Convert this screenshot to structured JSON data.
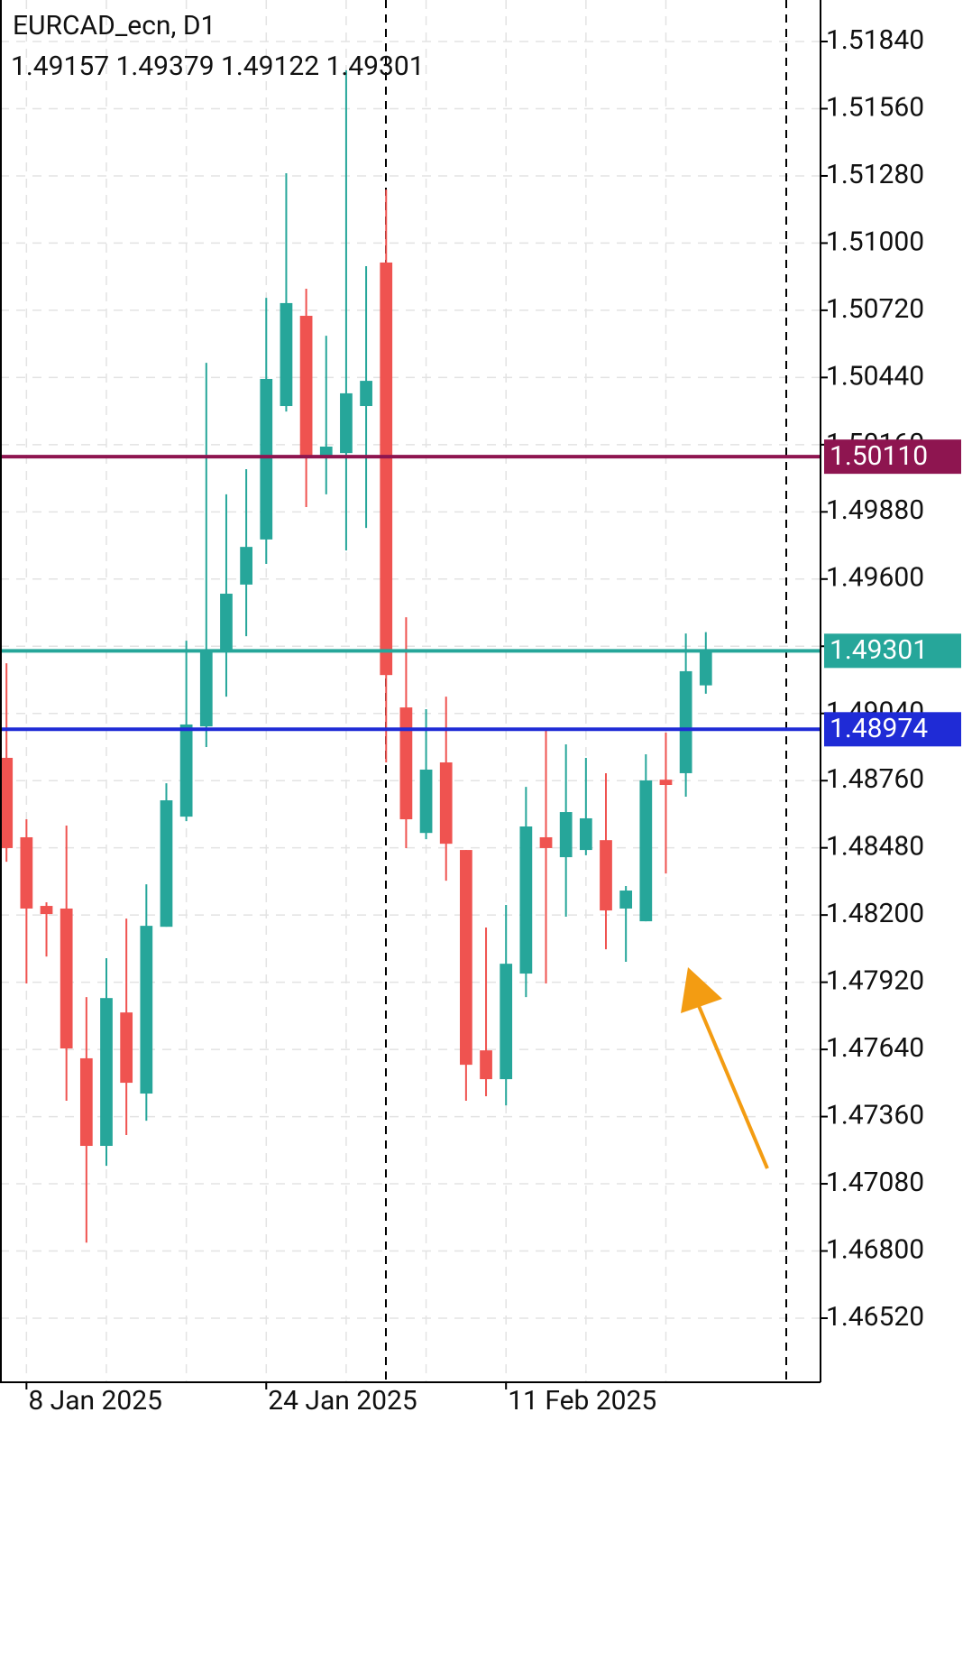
{
  "chart_data": {
    "type": "candlestick",
    "title": "EURCAD_ecn, D1",
    "subtitle": "1.49157 1.49379 1.49122 1.49301",
    "up_color": "#26a69a",
    "down_color": "#ef5350",
    "categories": [
      null,
      "8 Jan 2025",
      null,
      null,
      null,
      null,
      null,
      null,
      null,
      null,
      null,
      null,
      null,
      "24 Jan 2025",
      null,
      null,
      null,
      null,
      null,
      null,
      null,
      null,
      null,
      null,
      null,
      "11 Feb 2025",
      null,
      null,
      null,
      null,
      null,
      null,
      null,
      null,
      null,
      null
    ],
    "open": [
      1.48855,
      1.48524,
      1.48238,
      1.48227,
      1.47603,
      1.47238,
      1.47794,
      1.47456,
      1.48151,
      1.4861,
      1.48986,
      1.49298,
      1.49577,
      1.49765,
      1.50321,
      1.50697,
      1.50114,
      1.50125,
      1.50321,
      1.50919,
      1.49065,
      1.48542,
      1.48836,
      1.48471,
      1.47636,
      1.47516,
      1.47956,
      1.48524,
      1.48441,
      1.48471,
      1.48512,
      1.48227,
      1.48174,
      1.48764,
      1.48791,
      1.49157
    ],
    "high": [
      1.49249,
      1.48599,
      1.48253,
      1.48573,
      1.47858,
      1.4802,
      1.48185,
      1.48328,
      1.48749,
      1.49343,
      1.50501,
      1.49953,
      1.50058,
      1.50772,
      1.51291,
      1.5081,
      1.50614,
      1.5172,
      1.50904,
      1.51223,
      1.49441,
      1.49058,
      1.4911,
      1.48471,
      1.48148,
      1.48242,
      1.48734,
      1.48975,
      1.48911,
      1.48855,
      1.48791,
      1.48321,
      1.4887,
      1.4896,
      1.49373,
      1.49379
    ],
    "low": [
      1.48422,
      1.47915,
      1.48027,
      1.47426,
      1.46835,
      1.47155,
      1.47283,
      1.47343,
      1.48151,
      1.48591,
      1.489,
      1.4911,
      1.49362,
      1.49663,
      1.50298,
      1.499,
      1.49953,
      1.49719,
      1.49813,
      1.48836,
      1.48479,
      1.48516,
      1.48343,
      1.47426,
      1.47445,
      1.47407,
      1.47858,
      1.47915,
      1.48193,
      1.48449,
      1.48057,
      1.48005,
      1.48174,
      1.48373,
      1.48693,
      1.49122
    ],
    "close": [
      1.48479,
      1.48227,
      1.48204,
      1.47644,
      1.47238,
      1.47854,
      1.47501,
      1.48155,
      1.48678,
      1.48994,
      1.49298,
      1.49539,
      1.49734,
      1.50434,
      1.5075,
      1.50114,
      1.50152,
      1.50374,
      1.50426,
      1.492,
      1.48599,
      1.48806,
      1.48497,
      1.47576,
      1.47516,
      1.47997,
      1.48569,
      1.48479,
      1.48629,
      1.48603,
      1.48219,
      1.48302,
      1.48761,
      1.48742,
      1.49216,
      1.49301
    ],
    "ylim": [
      1.46253,
      1.52013
    ],
    "yticks": [
      {
        "value": 1.5184,
        "label": "1.51840"
      },
      {
        "value": 1.5156,
        "label": "1.51560"
      },
      {
        "value": 1.5128,
        "label": "1.51280"
      },
      {
        "value": 1.51,
        "label": "1.51000"
      },
      {
        "value": 1.5072,
        "label": "1.50720"
      },
      {
        "value": 1.5044,
        "label": "1.50440"
      },
      {
        "value": 1.5016,
        "label": "1.50160"
      },
      {
        "value": 1.4988,
        "label": "1.49880"
      },
      {
        "value": 1.496,
        "label": "1.49600"
      },
      {
        "value": 1.4932,
        "label": "1.49320"
      },
      {
        "value": 1.4904,
        "label": "1.49040"
      },
      {
        "value": 1.4876,
        "label": "1.48760"
      },
      {
        "value": 1.4848,
        "label": "1.48480"
      },
      {
        "value": 1.482,
        "label": "1.48200"
      },
      {
        "value": 1.4792,
        "label": "1.47920"
      },
      {
        "value": 1.4764,
        "label": "1.47640"
      },
      {
        "value": 1.4736,
        "label": "1.47360"
      },
      {
        "value": 1.4708,
        "label": "1.47080"
      },
      {
        "value": 1.468,
        "label": "1.46800"
      },
      {
        "value": 1.4652,
        "label": "1.46520"
      }
    ],
    "grid": true,
    "levels": [
      {
        "value": 1.5011,
        "label": "1.50110",
        "color": "#8e1550"
      },
      {
        "value": 1.49301,
        "label": "1.49301",
        "color": "#26a69a"
      },
      {
        "value": 1.48974,
        "label": "1.48974",
        "color": "#1f2bd6"
      }
    ]
  }
}
